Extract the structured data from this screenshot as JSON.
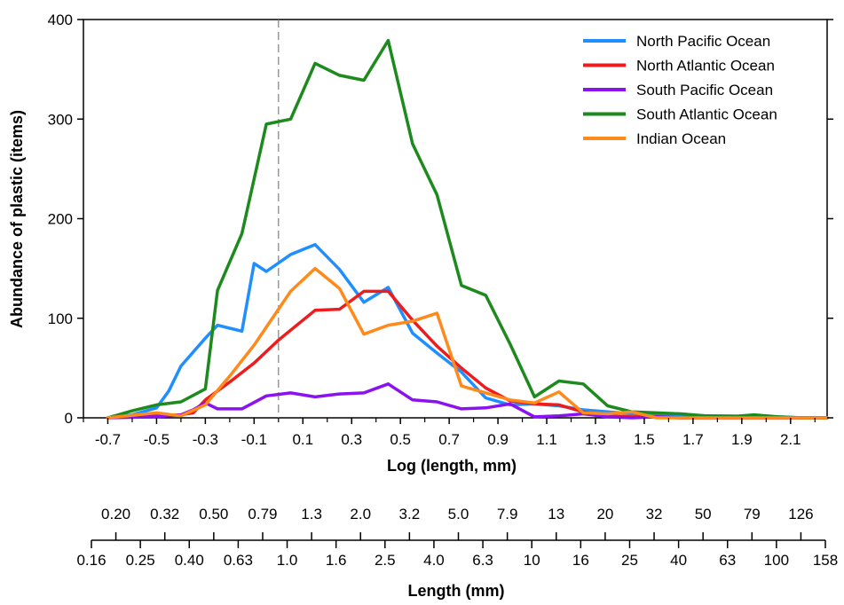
{
  "chart_data": {
    "type": "line",
    "xlabel": "Log (length, mm)",
    "ylabel": "Abundance of plastic (items)",
    "xlim": [
      -0.8,
      2.25
    ],
    "ylim": [
      0,
      400
    ],
    "x_ticks": [
      -0.7,
      -0.5,
      -0.3,
      -0.1,
      0.1,
      0.3,
      0.5,
      0.7,
      0.9,
      1.1,
      1.3,
      1.5,
      1.7,
      1.9,
      2.1
    ],
    "y_ticks": [
      0,
      100,
      200,
      300,
      400
    ],
    "reference_line_x": 0,
    "legend_position": "top-right",
    "series": [
      {
        "name": "North Pacific Ocean",
        "color": "#1f8fff",
        "x": [
          -0.7,
          -0.6,
          -0.5,
          -0.45,
          -0.4,
          -0.3,
          -0.25,
          -0.2,
          -0.15,
          -0.1,
          -0.05,
          0.05,
          0.15,
          0.25,
          0.35,
          0.45,
          0.55,
          0.65,
          0.75,
          0.85,
          0.95,
          1.05,
          1.15,
          1.25,
          1.35,
          1.45,
          1.55,
          1.65,
          1.75,
          1.85,
          1.95,
          2.05,
          2.15,
          2.25
        ],
        "y": [
          0,
          3,
          10,
          27,
          52,
          80,
          93,
          90,
          87,
          155,
          147,
          164,
          174,
          149,
          116,
          131,
          85,
          65,
          46,
          20,
          13,
          14,
          12,
          8,
          6,
          4,
          3,
          3,
          2,
          2,
          1,
          1,
          0,
          0
        ]
      },
      {
        "name": "North Atlantic Ocean",
        "color": "#ee1c1c",
        "x": [
          -0.7,
          -0.5,
          -0.4,
          -0.35,
          -0.3,
          -0.2,
          -0.1,
          0,
          0.05,
          0.15,
          0.25,
          0.35,
          0.45,
          0.55,
          0.65,
          0.75,
          0.85,
          0.95,
          1.05,
          1.15,
          1.25,
          1.35,
          1.45,
          1.55,
          1.65,
          1.75,
          1.85,
          1.95,
          2.05,
          2.15,
          2.25
        ],
        "y": [
          0,
          2,
          3,
          5,
          18,
          36,
          55,
          78,
          88,
          108,
          109,
          127,
          127,
          98,
          72,
          50,
          30,
          17,
          14,
          13,
          6,
          2,
          1,
          1,
          0,
          0,
          0,
          0,
          0,
          0,
          0
        ]
      },
      {
        "name": "South Pacific Ocean",
        "color": "#8a12f0",
        "x": [
          -0.7,
          -0.5,
          -0.4,
          -0.35,
          -0.3,
          -0.25,
          -0.15,
          -0.05,
          0.05,
          0.15,
          0.25,
          0.35,
          0.45,
          0.55,
          0.65,
          0.75,
          0.85,
          0.95,
          1.05,
          1.15,
          1.25,
          1.35,
          1.45,
          1.55,
          1.65,
          1.75,
          1.85,
          1.95,
          2.05,
          2.15,
          2.25
        ],
        "y": [
          0,
          1,
          3,
          8,
          15,
          9,
          9,
          22,
          25,
          21,
          24,
          25,
          34,
          18,
          16,
          9,
          10,
          14,
          1,
          2,
          4,
          1,
          0,
          1,
          0,
          0,
          0,
          0,
          0,
          0,
          0
        ]
      },
      {
        "name": "South Atlantic Ocean",
        "color": "#1d8a1d",
        "x": [
          -0.7,
          -0.6,
          -0.5,
          -0.4,
          -0.3,
          -0.25,
          -0.15,
          -0.05,
          0.05,
          0.15,
          0.25,
          0.35,
          0.45,
          0.55,
          0.65,
          0.75,
          0.85,
          0.95,
          1.05,
          1.15,
          1.25,
          1.35,
          1.45,
          1.55,
          1.65,
          1.75,
          1.85,
          1.95,
          2.05,
          2.15,
          2.25
        ],
        "y": [
          0,
          7,
          13,
          16,
          29,
          128,
          185,
          295,
          300,
          356,
          344,
          339,
          379,
          275,
          224,
          133,
          123,
          74,
          21,
          37,
          34,
          12,
          6,
          5,
          4,
          2,
          1,
          3,
          1,
          0,
          0
        ]
      },
      {
        "name": "Indian Ocean",
        "color": "#ff8a1c",
        "x": [
          -0.7,
          -0.5,
          -0.4,
          -0.3,
          -0.2,
          -0.1,
          0.05,
          0.15,
          0.25,
          0.35,
          0.45,
          0.55,
          0.65,
          0.75,
          0.85,
          0.95,
          1.05,
          1.15,
          1.25,
          1.35,
          1.45,
          1.55,
          1.65,
          1.75,
          1.85,
          1.95,
          2.05,
          2.15,
          2.25
        ],
        "y": [
          0,
          5,
          2,
          13,
          42,
          73,
          127,
          150,
          130,
          84,
          93,
          97,
          105,
          32,
          25,
          18,
          15,
          26,
          5,
          4,
          6,
          0,
          0,
          0,
          0,
          0,
          0,
          0,
          0
        ]
      }
    ],
    "secondary_axis": {
      "label": "Length (mm)",
      "upper_labels": [
        "0.20",
        "0.32",
        "0.50",
        "0.79",
        "1.3",
        "2.0",
        "3.2",
        "5.0",
        "7.9",
        "13",
        "20",
        "32",
        "50",
        "79",
        "126"
      ],
      "lower_labels": [
        "0.16",
        "0.25",
        "0.40",
        "0.63",
        "1.0",
        "1.6",
        "2.5",
        "4.0",
        "6.3",
        "10",
        "16",
        "25",
        "40",
        "63",
        "100",
        "158"
      ]
    }
  }
}
